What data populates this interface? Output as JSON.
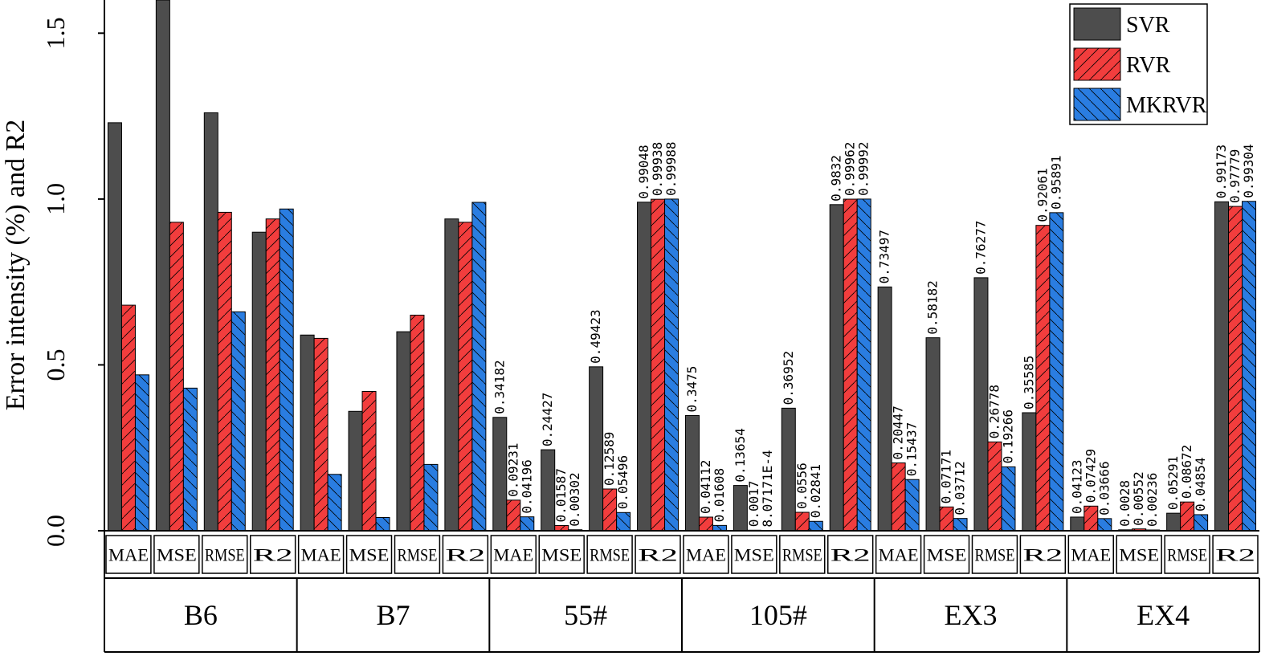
{
  "chart_data": {
    "type": "bar",
    "y_label": "Error intensity (%) and R2",
    "categories": [
      "MAE",
      "MSE",
      "RMSE",
      "R2",
      "MAE",
      "MSE",
      "RMSE",
      "R2",
      "MAE",
      "MSE",
      "RMSE",
      "R2",
      "MAE",
      "MSE",
      "RMSE",
      "R2",
      "MAE",
      "MSE",
      "RMSE",
      "R2",
      "MAE",
      "MSE",
      "RMSE",
      "R2"
    ],
    "groups": [
      "B6",
      "B7",
      "55#",
      "105#",
      "EX3",
      "EX4"
    ],
    "ylim": [
      0,
      1.6
    ],
    "yticks": [
      {
        "value": 0,
        "label": "0.0"
      },
      0.5,
      {
        "value": 1,
        "label": "1.0"
      },
      1.5
    ],
    "legend": "upper right",
    "series": [
      {
        "name": "SVR",
        "color": "#4d4d4d",
        "hatch": "none",
        "values": [
          1.23,
          1.6,
          1.26,
          0.9,
          0.59,
          0.36,
          0.6,
          0.94,
          0.34182,
          0.24427,
          0.49423,
          0.99048,
          0.3475,
          0.13654,
          0.36952,
          0.9832,
          0.73497,
          0.58182,
          0.76277,
          0.35585,
          0.04123,
          0.0028,
          0.05291,
          0.99173
        ],
        "value_labels": [
          null,
          null,
          null,
          null,
          null,
          null,
          null,
          null,
          "0.34182",
          "0.24427",
          "0.49423",
          "0.99048",
          "0.3475",
          "0.13654",
          "0.36952",
          "0.9832",
          "0.73497",
          "0.58182",
          "0.76277",
          "0.35585",
          "0.04123",
          "0.0028",
          "0.05291",
          "0.99173"
        ]
      },
      {
        "name": "RVR",
        "color": "#f23d3d",
        "hatch": "forward",
        "values": [
          0.68,
          0.93,
          0.96,
          0.94,
          0.58,
          0.42,
          0.65,
          0.93,
          0.09231,
          0.01587,
          0.12589,
          0.99938,
          0.04112,
          0.0017,
          0.0556,
          0.99962,
          0.20447,
          0.07171,
          0.26778,
          0.92061,
          0.07429,
          0.00552,
          0.08672,
          0.97779
        ],
        "value_labels": [
          null,
          null,
          null,
          null,
          null,
          null,
          null,
          null,
          "0.09231",
          "0.01587",
          "0.12589",
          "0.99938",
          "0.04112",
          "0.0017",
          "0.0556",
          "0.99962",
          "0.20447",
          "0.07171",
          "0.26778",
          "0.92061",
          "0.07429",
          "0.00552",
          "0.08672",
          "0.97779"
        ]
      },
      {
        "name": "MKRVR",
        "color": "#2a7de1",
        "hatch": "backward",
        "values": [
          0.47,
          0.43,
          0.66,
          0.97,
          0.17,
          0.04,
          0.2,
          0.99,
          0.04196,
          0.00302,
          0.05496,
          0.99988,
          0.01608,
          0.000807171,
          0.02841,
          0.99992,
          0.15437,
          0.03712,
          0.19266,
          0.95891,
          0.03666,
          0.00236,
          0.04854,
          0.99304
        ],
        "value_labels": [
          null,
          null,
          null,
          null,
          null,
          null,
          null,
          null,
          "0.04196",
          "0.00302",
          "0.05496",
          "0.99988",
          "0.01608",
          "8.07171E-4",
          "0.02841",
          "0.99992",
          "0.15437",
          "0.03712",
          "0.19266",
          "0.95891",
          "0.03666",
          "0.00236",
          "0.04854",
          "0.99304"
        ]
      }
    ]
  }
}
